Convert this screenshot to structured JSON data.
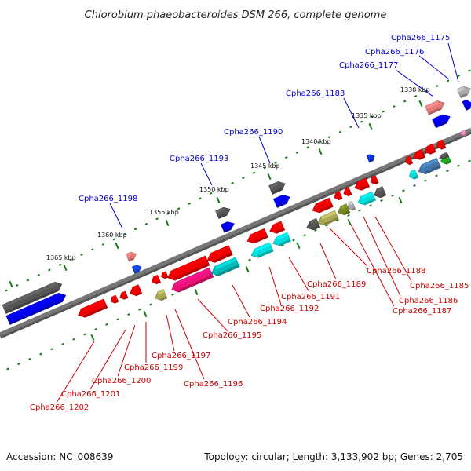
{
  "title": "Chlorobium phaeobacteroides DSM 266, complete genome",
  "footer": {
    "accession": "Accession: NC_008639",
    "summary": "Topology: circular; Length: 3,133,902 bp; Genes: 2,705"
  },
  "colors": {
    "forward_label": "#0000cc",
    "reverse_label": "#cc0000",
    "backbone": "#777777",
    "tick": "#1a7a1a"
  },
  "kbp_labels": [
    "1365 kbp",
    "1360 kbp",
    "1355 kbp",
    "1350 kbp",
    "1345 kbp",
    "1340 kbp",
    "1335 kbp",
    "1330 kbp"
  ],
  "forward_labels": [
    "Cpha266_1175",
    "Cpha266_1176",
    "Cpha266_1177",
    "Cpha266_1183",
    "Cpha266_1190",
    "Cpha266_1193",
    "Cpha266_1198"
  ],
  "reverse_labels": [
    "Cpha266_1185",
    "Cpha266_1186",
    "Cpha266_1187",
    "Cpha266_1188",
    "Cpha266_1189",
    "Cpha266_1191",
    "Cpha266_1192",
    "Cpha266_1194",
    "Cpha266_1195",
    "Cpha266_1196",
    "Cpha266_1197",
    "Cpha266_1199",
    "Cpha266_1200",
    "Cpha266_1201",
    "Cpha266_1202"
  ]
}
